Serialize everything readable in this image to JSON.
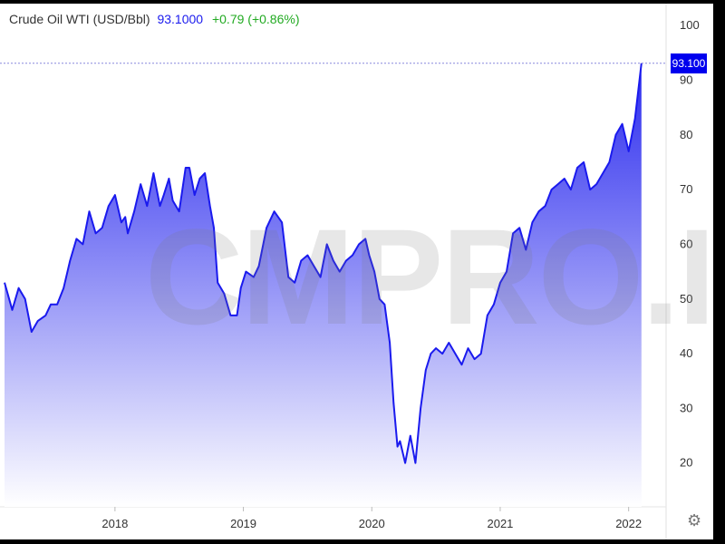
{
  "header": {
    "title": "Crude Oil WTI (USD/Bbl)",
    "price": "93.1000",
    "change": "+0.79 (+0.86%)"
  },
  "watermark": "CMPRO.IR",
  "price_badge": "93.100",
  "icons": {
    "settings": "gear-icon"
  },
  "colors": {
    "line": "#1a1aee",
    "fill_top": "#2a2aee",
    "badge": "#0000ee",
    "change": "#22aa22"
  },
  "chart_data": {
    "type": "area",
    "title": "Crude Oil WTI (USD/Bbl)",
    "xlabel": "",
    "ylabel": "",
    "ylim": [
      12,
      104
    ],
    "xlim": [
      2017.14,
      2022.2
    ],
    "x_ticks": [
      2018,
      2019,
      2020,
      2021,
      2022
    ],
    "y_ticks": [
      20,
      30,
      40,
      50,
      60,
      70,
      80,
      90,
      100
    ],
    "grid": false,
    "current_value": 93.1,
    "x": [
      2017.14,
      2017.2,
      2017.25,
      2017.3,
      2017.35,
      2017.4,
      2017.46,
      2017.5,
      2017.55,
      2017.6,
      2017.65,
      2017.7,
      2017.75,
      2017.8,
      2017.85,
      2017.9,
      2017.95,
      2018.0,
      2018.05,
      2018.08,
      2018.1,
      2018.15,
      2018.2,
      2018.25,
      2018.3,
      2018.35,
      2018.38,
      2018.42,
      2018.45,
      2018.5,
      2018.55,
      2018.58,
      2018.62,
      2018.66,
      2018.7,
      2018.74,
      2018.77,
      2018.8,
      2018.85,
      2018.9,
      2018.95,
      2018.98,
      2019.02,
      2019.08,
      2019.12,
      2019.18,
      2019.24,
      2019.3,
      2019.35,
      2019.4,
      2019.45,
      2019.5,
      2019.55,
      2019.6,
      2019.65,
      2019.7,
      2019.75,
      2019.8,
      2019.85,
      2019.9,
      2019.95,
      2019.98,
      2020.02,
      2020.06,
      2020.1,
      2020.14,
      2020.17,
      2020.2,
      2020.22,
      2020.26,
      2020.3,
      2020.34,
      2020.38,
      2020.42,
      2020.46,
      2020.5,
      2020.55,
      2020.6,
      2020.65,
      2020.7,
      2020.75,
      2020.8,
      2020.85,
      2020.9,
      2020.95,
      2021.0,
      2021.05,
      2021.1,
      2021.15,
      2021.2,
      2021.25,
      2021.3,
      2021.35,
      2021.4,
      2021.45,
      2021.5,
      2021.55,
      2021.6,
      2021.65,
      2021.7,
      2021.75,
      2021.8,
      2021.85,
      2021.9,
      2021.95,
      2022.0,
      2022.05,
      2022.1
    ],
    "y": [
      53,
      48,
      52,
      50,
      44,
      46,
      47,
      49,
      49,
      52,
      57,
      61,
      60,
      66,
      62,
      63,
      67,
      69,
      64,
      65,
      62,
      66,
      71,
      67,
      73,
      67,
      69,
      72,
      68,
      66,
      74,
      74,
      69,
      72,
      73,
      67,
      63,
      53,
      51,
      47,
      47,
      52,
      55,
      54,
      56,
      63,
      66,
      64,
      54,
      53,
      57,
      58,
      56,
      54,
      60,
      57,
      55,
      57,
      58,
      60,
      61,
      58,
      55,
      50,
      49,
      42,
      31,
      23,
      24,
      20,
      25,
      20,
      30,
      37,
      40,
      41,
      40,
      42,
      40,
      38,
      41,
      39,
      40,
      47,
      49,
      53,
      55,
      62,
      63,
      59,
      64,
      66,
      67,
      70,
      71,
      72,
      70,
      74,
      75,
      70,
      71,
      73,
      75,
      80,
      82,
      77,
      83,
      93.1
    ]
  }
}
